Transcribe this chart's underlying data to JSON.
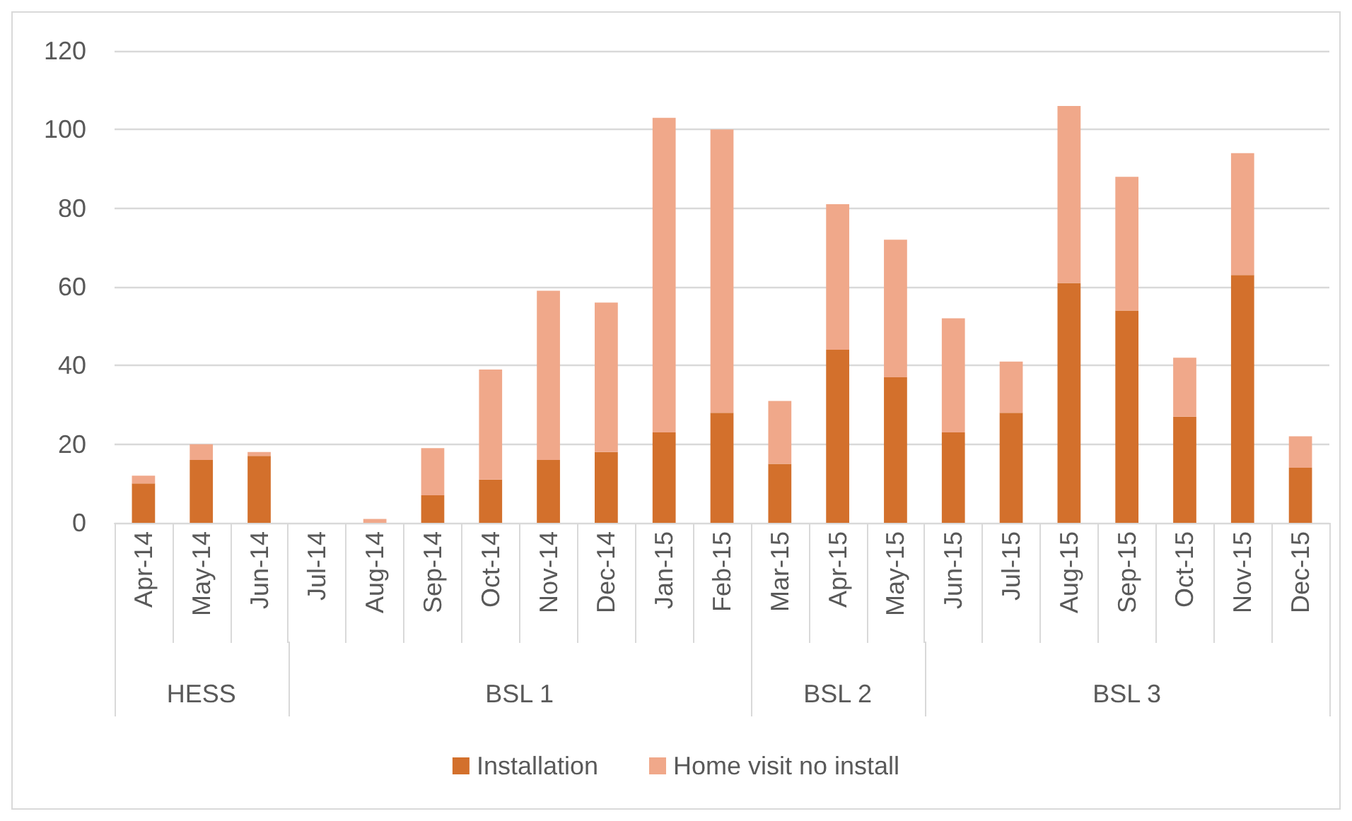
{
  "chart_data": {
    "type": "bar",
    "stacked": true,
    "categories": [
      "Apr-14",
      "May-14",
      "Jun-14",
      "Jul-14",
      "Aug-14",
      "Sep-14",
      "Oct-14",
      "Nov-14",
      "Dec-14",
      "Jan-15",
      "Feb-15",
      "Mar-15",
      "Apr-15",
      "May-15",
      "Jun-15",
      "Jul-15",
      "Aug-15",
      "Sep-15",
      "Oct-15",
      "Nov-15",
      "Dec-15"
    ],
    "series": [
      {
        "name": "Installation",
        "color": "#d3702c",
        "values": [
          10,
          16,
          17,
          0,
          0,
          7,
          11,
          16,
          18,
          23,
          28,
          15,
          44,
          37,
          23,
          28,
          61,
          54,
          27,
          63,
          14
        ]
      },
      {
        "name": "Home visit no install",
        "color": "#f0a88a",
        "values": [
          2,
          4,
          1,
          0,
          1,
          12,
          28,
          43,
          38,
          80,
          72,
          16,
          37,
          35,
          29,
          13,
          45,
          34,
          15,
          31,
          8
        ]
      }
    ],
    "ylim": [
      0,
      120
    ],
    "yticks": [
      0,
      20,
      40,
      60,
      80,
      100,
      120
    ],
    "grid": "y",
    "legend": "bottom",
    "annotations": [
      "HESS",
      "BSL 1",
      "BSL 2",
      "BSL 3"
    ]
  }
}
